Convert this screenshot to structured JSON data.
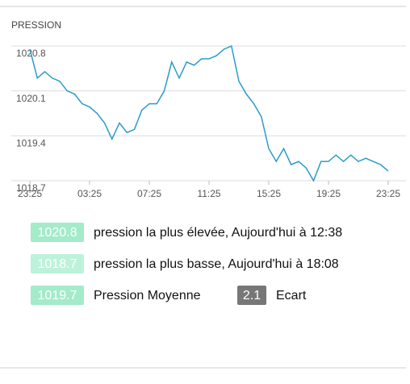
{
  "chart_data": {
    "type": "line",
    "title": "PRESSION",
    "categories": [
      "23:25",
      null,
      null,
      null,
      null,
      null,
      null,
      null,
      "03:25",
      null,
      null,
      null,
      null,
      null,
      null,
      null,
      "07:25",
      null,
      null,
      null,
      null,
      null,
      null,
      null,
      "11:25",
      null,
      null,
      null,
      null,
      null,
      null,
      null,
      "15:25",
      null,
      null,
      null,
      null,
      null,
      null,
      null,
      "19:25",
      null,
      null,
      null,
      null,
      null,
      null,
      null,
      "23:25"
    ],
    "values": [
      1020.75,
      1020.3,
      1020.4,
      1020.3,
      1020.25,
      1020.1,
      1020.05,
      1019.9,
      1019.85,
      1019.75,
      1019.6,
      1019.35,
      1019.6,
      1019.45,
      1019.5,
      1019.8,
      1019.9,
      1019.9,
      1020.1,
      1020.55,
      1020.3,
      1020.55,
      1020.5,
      1020.6,
      1020.6,
      1020.65,
      1020.75,
      1020.8,
      1020.25,
      1020.05,
      1019.9,
      1019.7,
      1019.2,
      1019.0,
      1019.2,
      1018.95,
      1019.0,
      1018.9,
      1018.7,
      1019.0,
      1019.0,
      1019.1,
      1019.0,
      1019.1,
      1019.0,
      1019.05,
      1019.0,
      1018.95,
      1018.85
    ],
    "color": "#2b9bc9",
    "ylim": [
      1018.7,
      1020.8
    ],
    "yticks": [
      1018.7,
      1019.4,
      1020.1,
      1020.8
    ],
    "grid": true
  },
  "summary": {
    "rows": [
      [
        {
          "value": 1020.8,
          "text": "pression la plus élevée, Aujourd'hui à 12:38"
        }
      ],
      [
        {
          "value": 1018.7,
          "text": "pression la plus basse, Aujourd'hui à 18:08"
        }
      ],
      [
        {
          "value": 1019.7,
          "text": "Pression Moyenne"
        },
        {
          "value": 2.1,
          "text": "Ecart"
        }
      ]
    ]
  }
}
